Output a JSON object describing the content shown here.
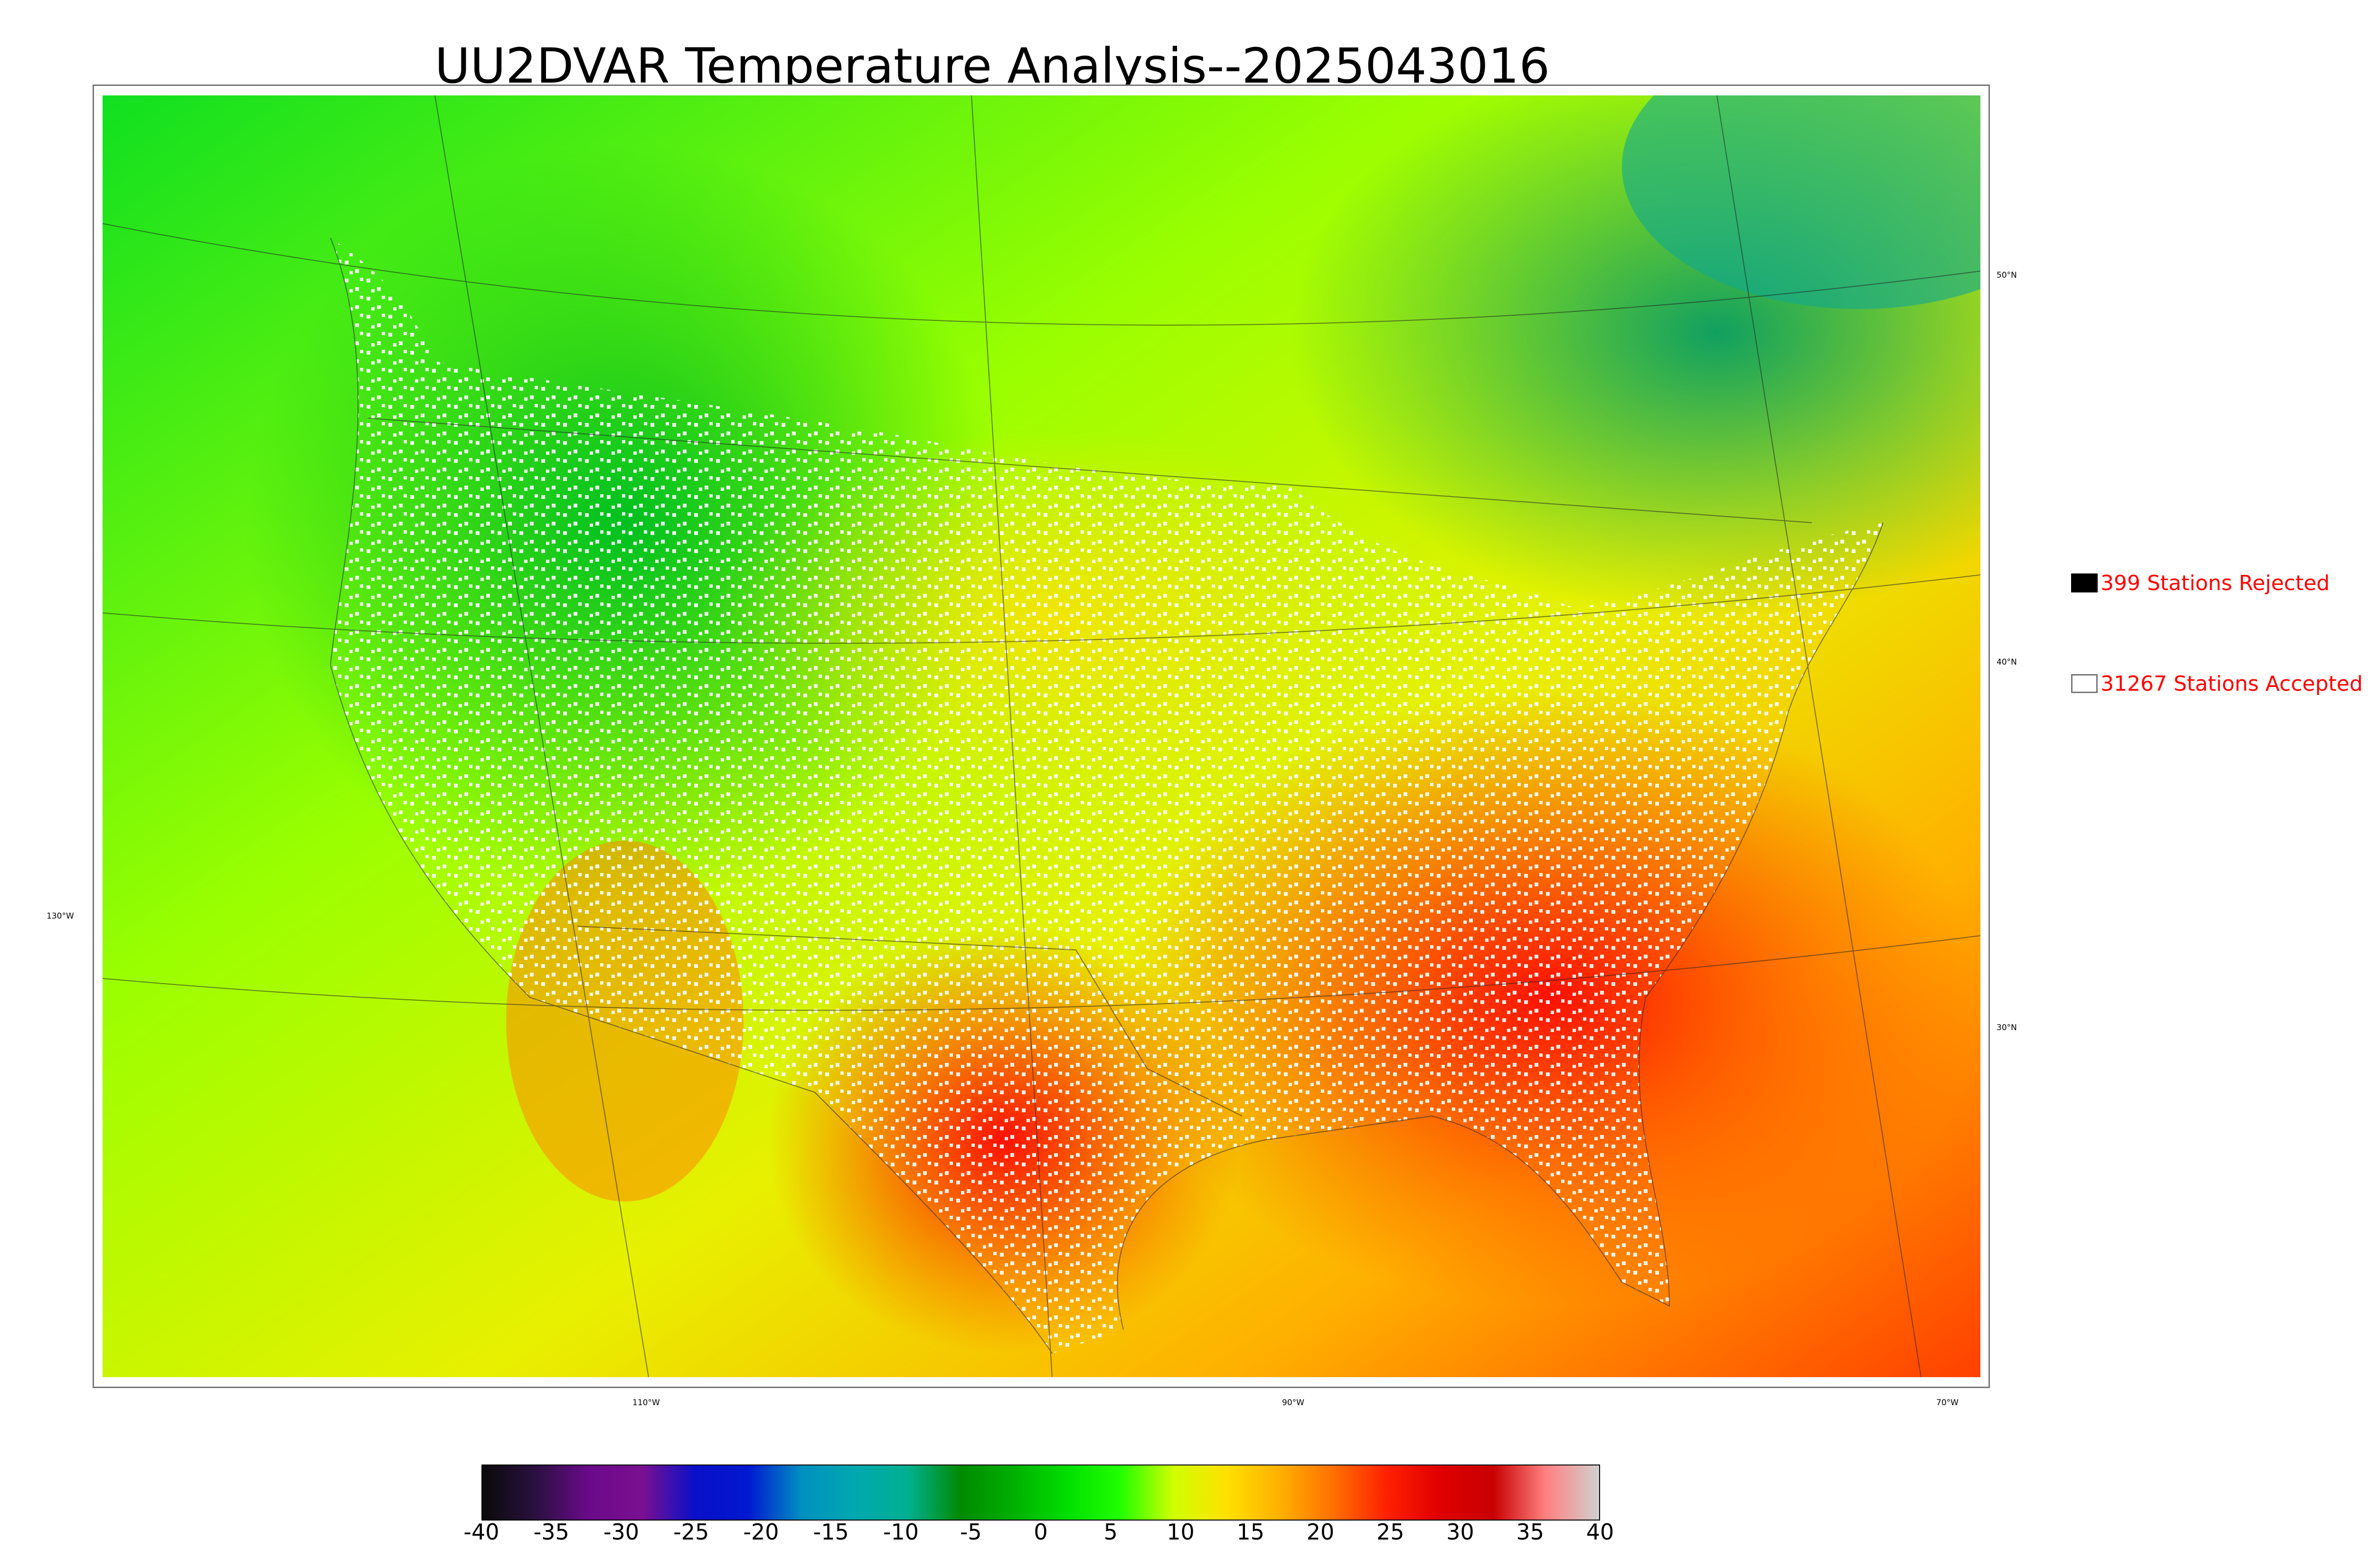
{
  "title": "UU2DVAR Temperature Analysis--2025043016",
  "map": {
    "longitude_labels": [
      "130°W",
      "110°W",
      "90°W",
      "70°W"
    ],
    "latitude_labels": [
      "50°N",
      "40°N",
      "30°N"
    ]
  },
  "legend": {
    "rejected": {
      "label": "399 Stations Rejected",
      "color": "#000000"
    },
    "accepted": {
      "label": "31267 Stations Accepted",
      "color": "#ffffff"
    }
  },
  "colorbar": {
    "ticks": [
      "-40",
      "-35",
      "-30",
      "-25",
      "-20",
      "-15",
      "-10",
      "-5",
      "0",
      "5",
      "10",
      "15",
      "20",
      "25",
      "30",
      "35",
      "40"
    ],
    "range": [
      -40,
      40
    ],
    "colors": [
      "#0a0a0a",
      "#2a1040",
      "#6a0a8a",
      "#7a1090",
      "#0a10c8",
      "#0018d0",
      "#0090c0",
      "#00a8b0",
      "#00b090",
      "#008a00",
      "#00b000",
      "#00e000",
      "#20ff00",
      "#d0ff00",
      "#ffe000",
      "#ffb000",
      "#ff7000",
      "#ff2000",
      "#e00000",
      "#c80000",
      "#ff8080",
      "#d0d0d0"
    ]
  }
}
